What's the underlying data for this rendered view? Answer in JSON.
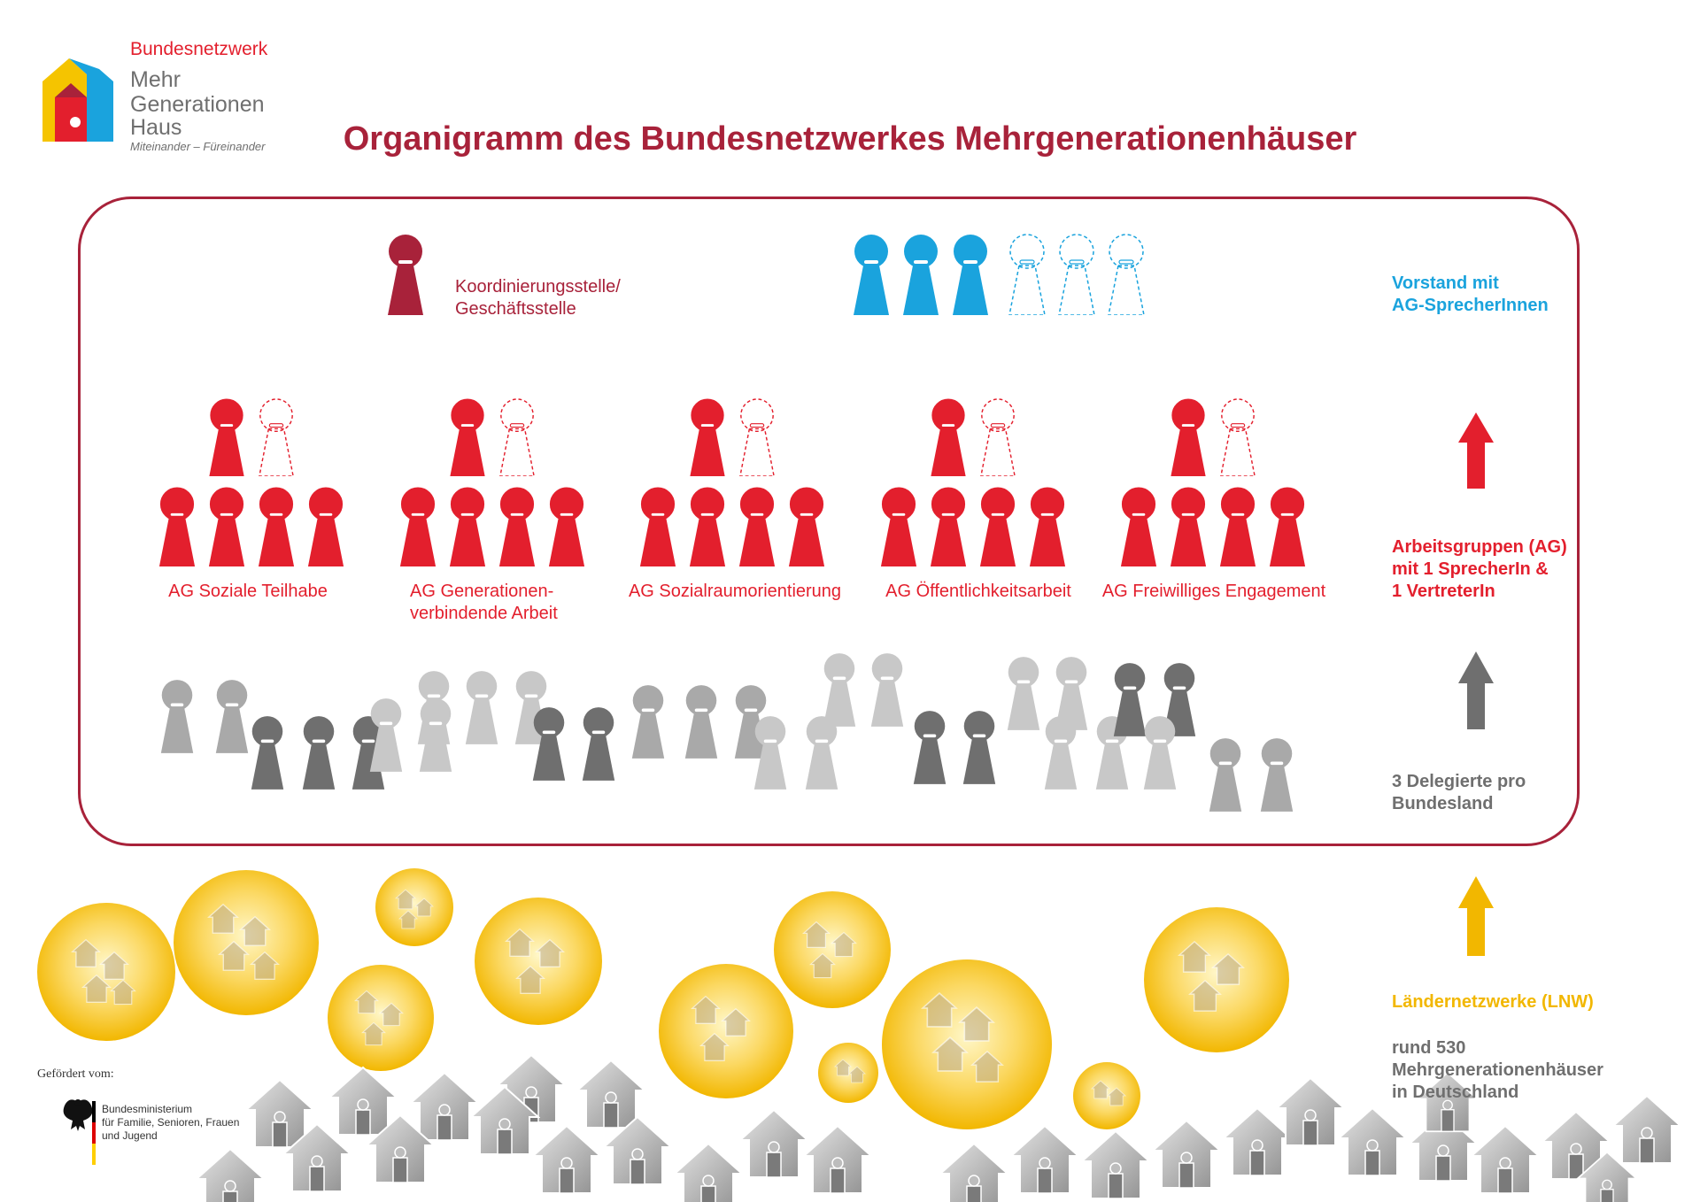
{
  "logo": {
    "network": "Bundesnetzwerk",
    "line1": "Mehr",
    "line2": "Generationen",
    "line3": "Haus",
    "tagline": "Miteinander – Füreinander"
  },
  "title": "Organigramm des Bundesnetzwerkes Mehrgenerationenhäuser",
  "coordination": {
    "line1": "Koordinierungsstelle/",
    "line2": "Geschäftsstelle"
  },
  "board": {
    "line1": "Vorstand mit",
    "line2": "AG-SprecherInnen",
    "filled_count": 3,
    "open_count": 3
  },
  "working_groups": [
    {
      "name": "AG Soziale Teilhabe"
    },
    {
      "name": "AG Generationen-",
      "name2": "verbindende Arbeit"
    },
    {
      "name": "AG Sozialraumorientierung"
    },
    {
      "name": "AG Öffentlichkeitsarbeit"
    },
    {
      "name": "AG Freiwilliges Engagement"
    }
  ],
  "side_labels": {
    "ag_line1": "Arbeitsgruppen (AG)",
    "ag_line2": "mit 1 SprecherIn &",
    "ag_line3": "1 VertreterIn",
    "delegates_line1": "3 Delegierte pro",
    "delegates_line2": "Bundesland",
    "lnw": "Ländernetzwerke (LNW)",
    "houses_line1": "rund 530",
    "houses_line2": "Mehrgenerationenhäuser",
    "houses_line3": "in Deutschland"
  },
  "funding": {
    "label": "Gefördert vom:",
    "ministry_line1": "Bundesministerium",
    "ministry_line2": "für Familie, Senioren, Frauen",
    "ministry_line3": "und Jugend"
  },
  "colors": {
    "dark_red": "#a8223a",
    "red": "#e31f2d",
    "blue": "#1aa3dd",
    "grey": "#6f6f6f",
    "gold": "#f2b700"
  },
  "icons": [
    "figure-icon",
    "arrow-up-icon",
    "house-icon",
    "federal-eagle-icon",
    "logo-house-icon"
  ]
}
